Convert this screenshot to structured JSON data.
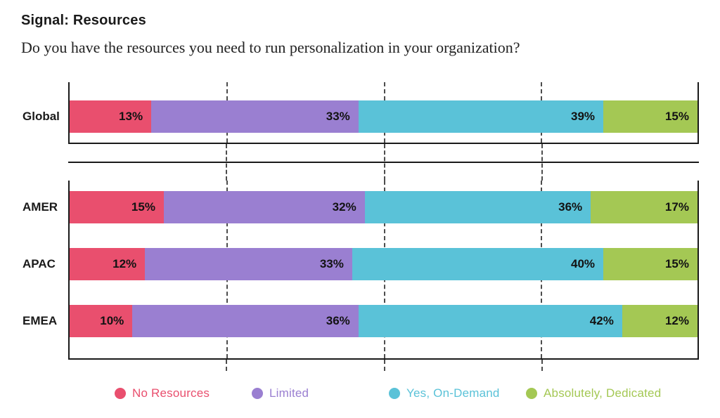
{
  "header": {
    "title": "Signal: Resources",
    "question": "Do you have the resources you need to run personalization in your organization?"
  },
  "chart_data": {
    "type": "bar",
    "orientation": "horizontal",
    "stacked": true,
    "title": "Signal: Resources",
    "subtitle": "Do you have the resources you need to run personalization in your organization?",
    "categories": [
      "Global",
      "AMER",
      "APAC",
      "EMEA"
    ],
    "category_groups": [
      [
        "Global"
      ],
      [
        "AMER",
        "APAC",
        "EMEA"
      ]
    ],
    "series": [
      {
        "name": "No Resources",
        "color": "#e94f6e",
        "values": [
          13,
          15,
          12,
          10
        ]
      },
      {
        "name": "Limited",
        "color": "#9a7fd1",
        "values": [
          33,
          32,
          33,
          36
        ]
      },
      {
        "name": "Yes, On-Demand",
        "color": "#5ac2d8",
        "values": [
          39,
          36,
          40,
          42
        ]
      },
      {
        "name": "Absolutely, Dedicated",
        "color": "#a4c854",
        "values": [
          15,
          17,
          15,
          12
        ]
      }
    ],
    "value_suffix": "%",
    "xlim": [
      0,
      100
    ],
    "gridlines_percent": [
      25,
      50,
      75
    ],
    "grid_style": "dashed",
    "legend_position": "bottom",
    "axis_color": "#1a1a1a"
  }
}
